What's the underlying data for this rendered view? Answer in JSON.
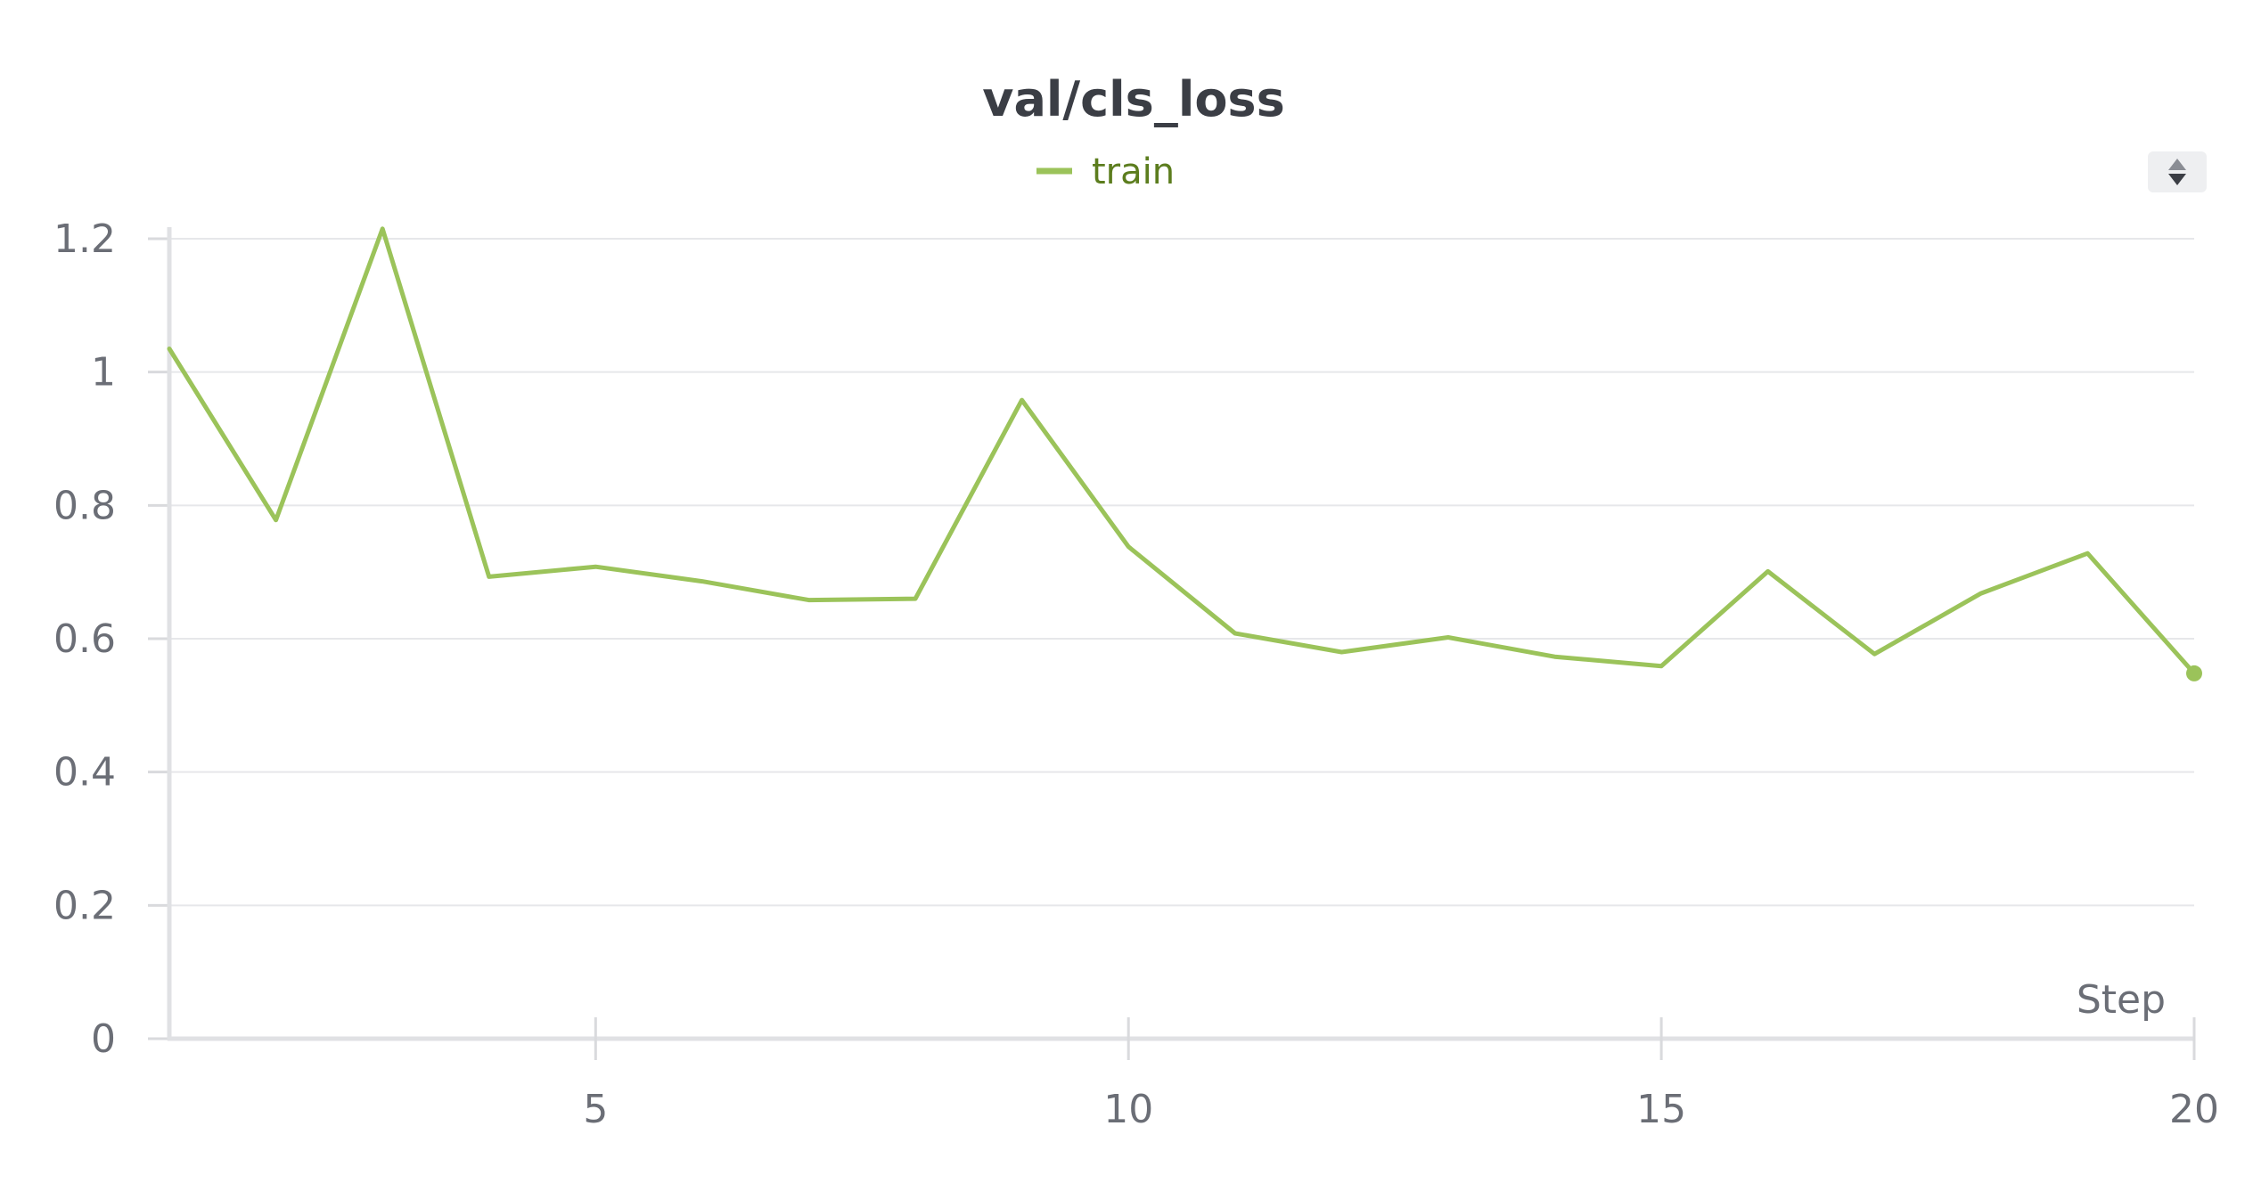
{
  "chart_data": {
    "type": "line",
    "title": "val/cls_loss",
    "xlabel": "Step",
    "ylabel": "",
    "xlim": [
      1,
      20
    ],
    "ylim": [
      0,
      1.2
    ],
    "x_ticks": [
      5,
      10,
      15,
      20
    ],
    "y_ticks": [
      0,
      0.2,
      0.4,
      0.6,
      0.8,
      1,
      1.2
    ],
    "grid": true,
    "legend_position": "top-center",
    "series": [
      {
        "name": "train",
        "color": "#9bc35a",
        "x": [
          1,
          2,
          3,
          4,
          5,
          6,
          7,
          8,
          9,
          10,
          11,
          12,
          13,
          14,
          15,
          16,
          17,
          18,
          19,
          20
        ],
        "y": [
          1.035,
          0.778,
          1.215,
          0.693,
          0.708,
          0.686,
          0.658,
          0.66,
          0.958,
          0.738,
          0.608,
          0.58,
          0.602,
          0.573,
          0.559,
          0.701,
          0.577,
          0.668,
          0.728,
          0.548
        ]
      }
    ]
  },
  "controls": {
    "sort_icon": "sort-arrows-icon"
  }
}
